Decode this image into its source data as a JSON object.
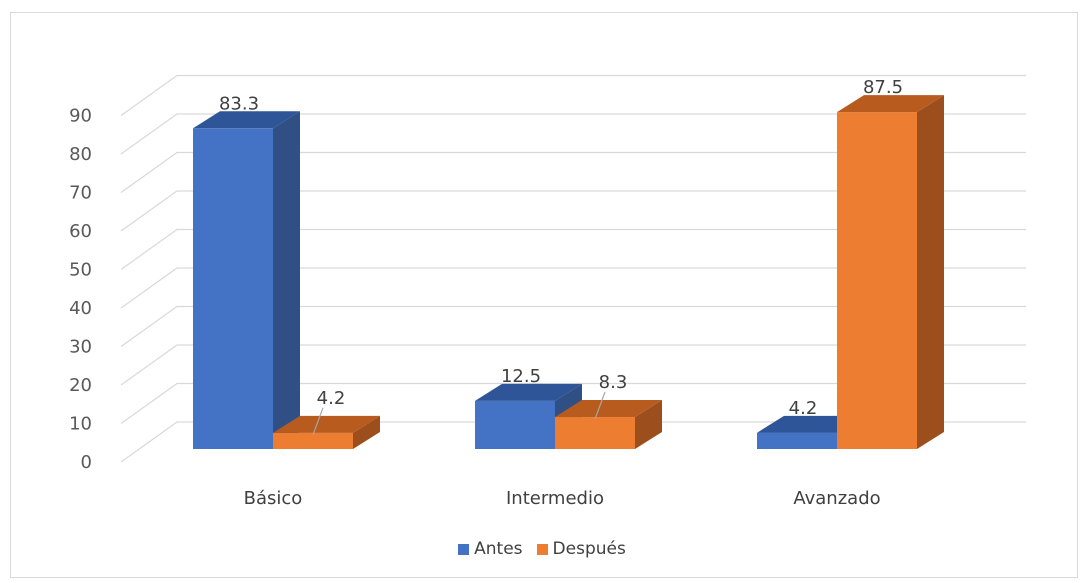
{
  "chart_data": {
    "type": "bar",
    "style": "3d-clustered-column",
    "categories": [
      "Básico",
      "Intermedio",
      "Avanzado"
    ],
    "series": [
      {
        "name": "Antes",
        "values": [
          83.3,
          12.5,
          4.2
        ],
        "color": "#4472c4",
        "side_color": "#2f4f85",
        "top_color": "#2e5597"
      },
      {
        "name": "Después",
        "values": [
          4.2,
          8.3,
          87.5
        ],
        "color": "#ed7d31",
        "side_color": "#9c4f1c",
        "top_color": "#b85b1f"
      }
    ],
    "data_labels": [
      [
        "83.3",
        "12.5",
        "4.2"
      ],
      [
        "4.2",
        "8.3",
        "87.5"
      ]
    ],
    "y_ticks": [
      "0",
      "10",
      "20",
      "30",
      "40",
      "50",
      "60",
      "70",
      "80",
      "90"
    ],
    "ylim": [
      0,
      90
    ],
    "grid": true,
    "legend_position": "bottom"
  }
}
